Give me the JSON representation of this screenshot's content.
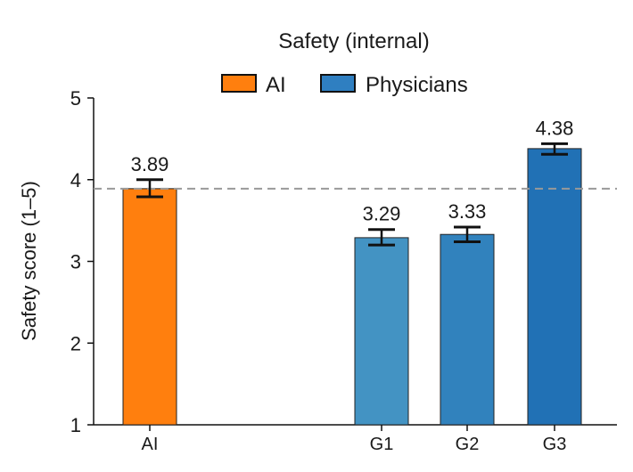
{
  "chart_data": {
    "type": "bar",
    "title": "Safety (internal)",
    "xlabel": "",
    "ylabel": "Safety score (1–5)",
    "ylim": [
      1,
      5
    ],
    "yticks": [
      "1",
      "2",
      "3",
      "4",
      "5"
    ],
    "grid": false,
    "legend": {
      "position": "top-center",
      "entries": [
        {
          "label": "AI",
          "color": "#ff7f0e"
        },
        {
          "label": "Physicians",
          "color": "#2f7fc1"
        }
      ]
    },
    "categories": [
      "AI",
      "G1",
      "G2",
      "G3"
    ],
    "values": [
      3.89,
      3.29,
      3.33,
      4.38
    ],
    "value_labels": [
      "3.89",
      "3.29",
      "3.33",
      "4.38"
    ],
    "error_low": [
      3.79,
      3.2,
      3.24,
      4.31
    ],
    "error_high": [
      4.0,
      3.39,
      3.42,
      4.44
    ],
    "groups": [
      "AI",
      "Physicians",
      "Physicians",
      "Physicians"
    ],
    "bar_colors": [
      "#ff7f0e",
      "#4393c3",
      "#3182bd",
      "#2171b5"
    ],
    "reference_line": {
      "value": 3.89,
      "style": "dashed",
      "color": "#999999"
    }
  }
}
